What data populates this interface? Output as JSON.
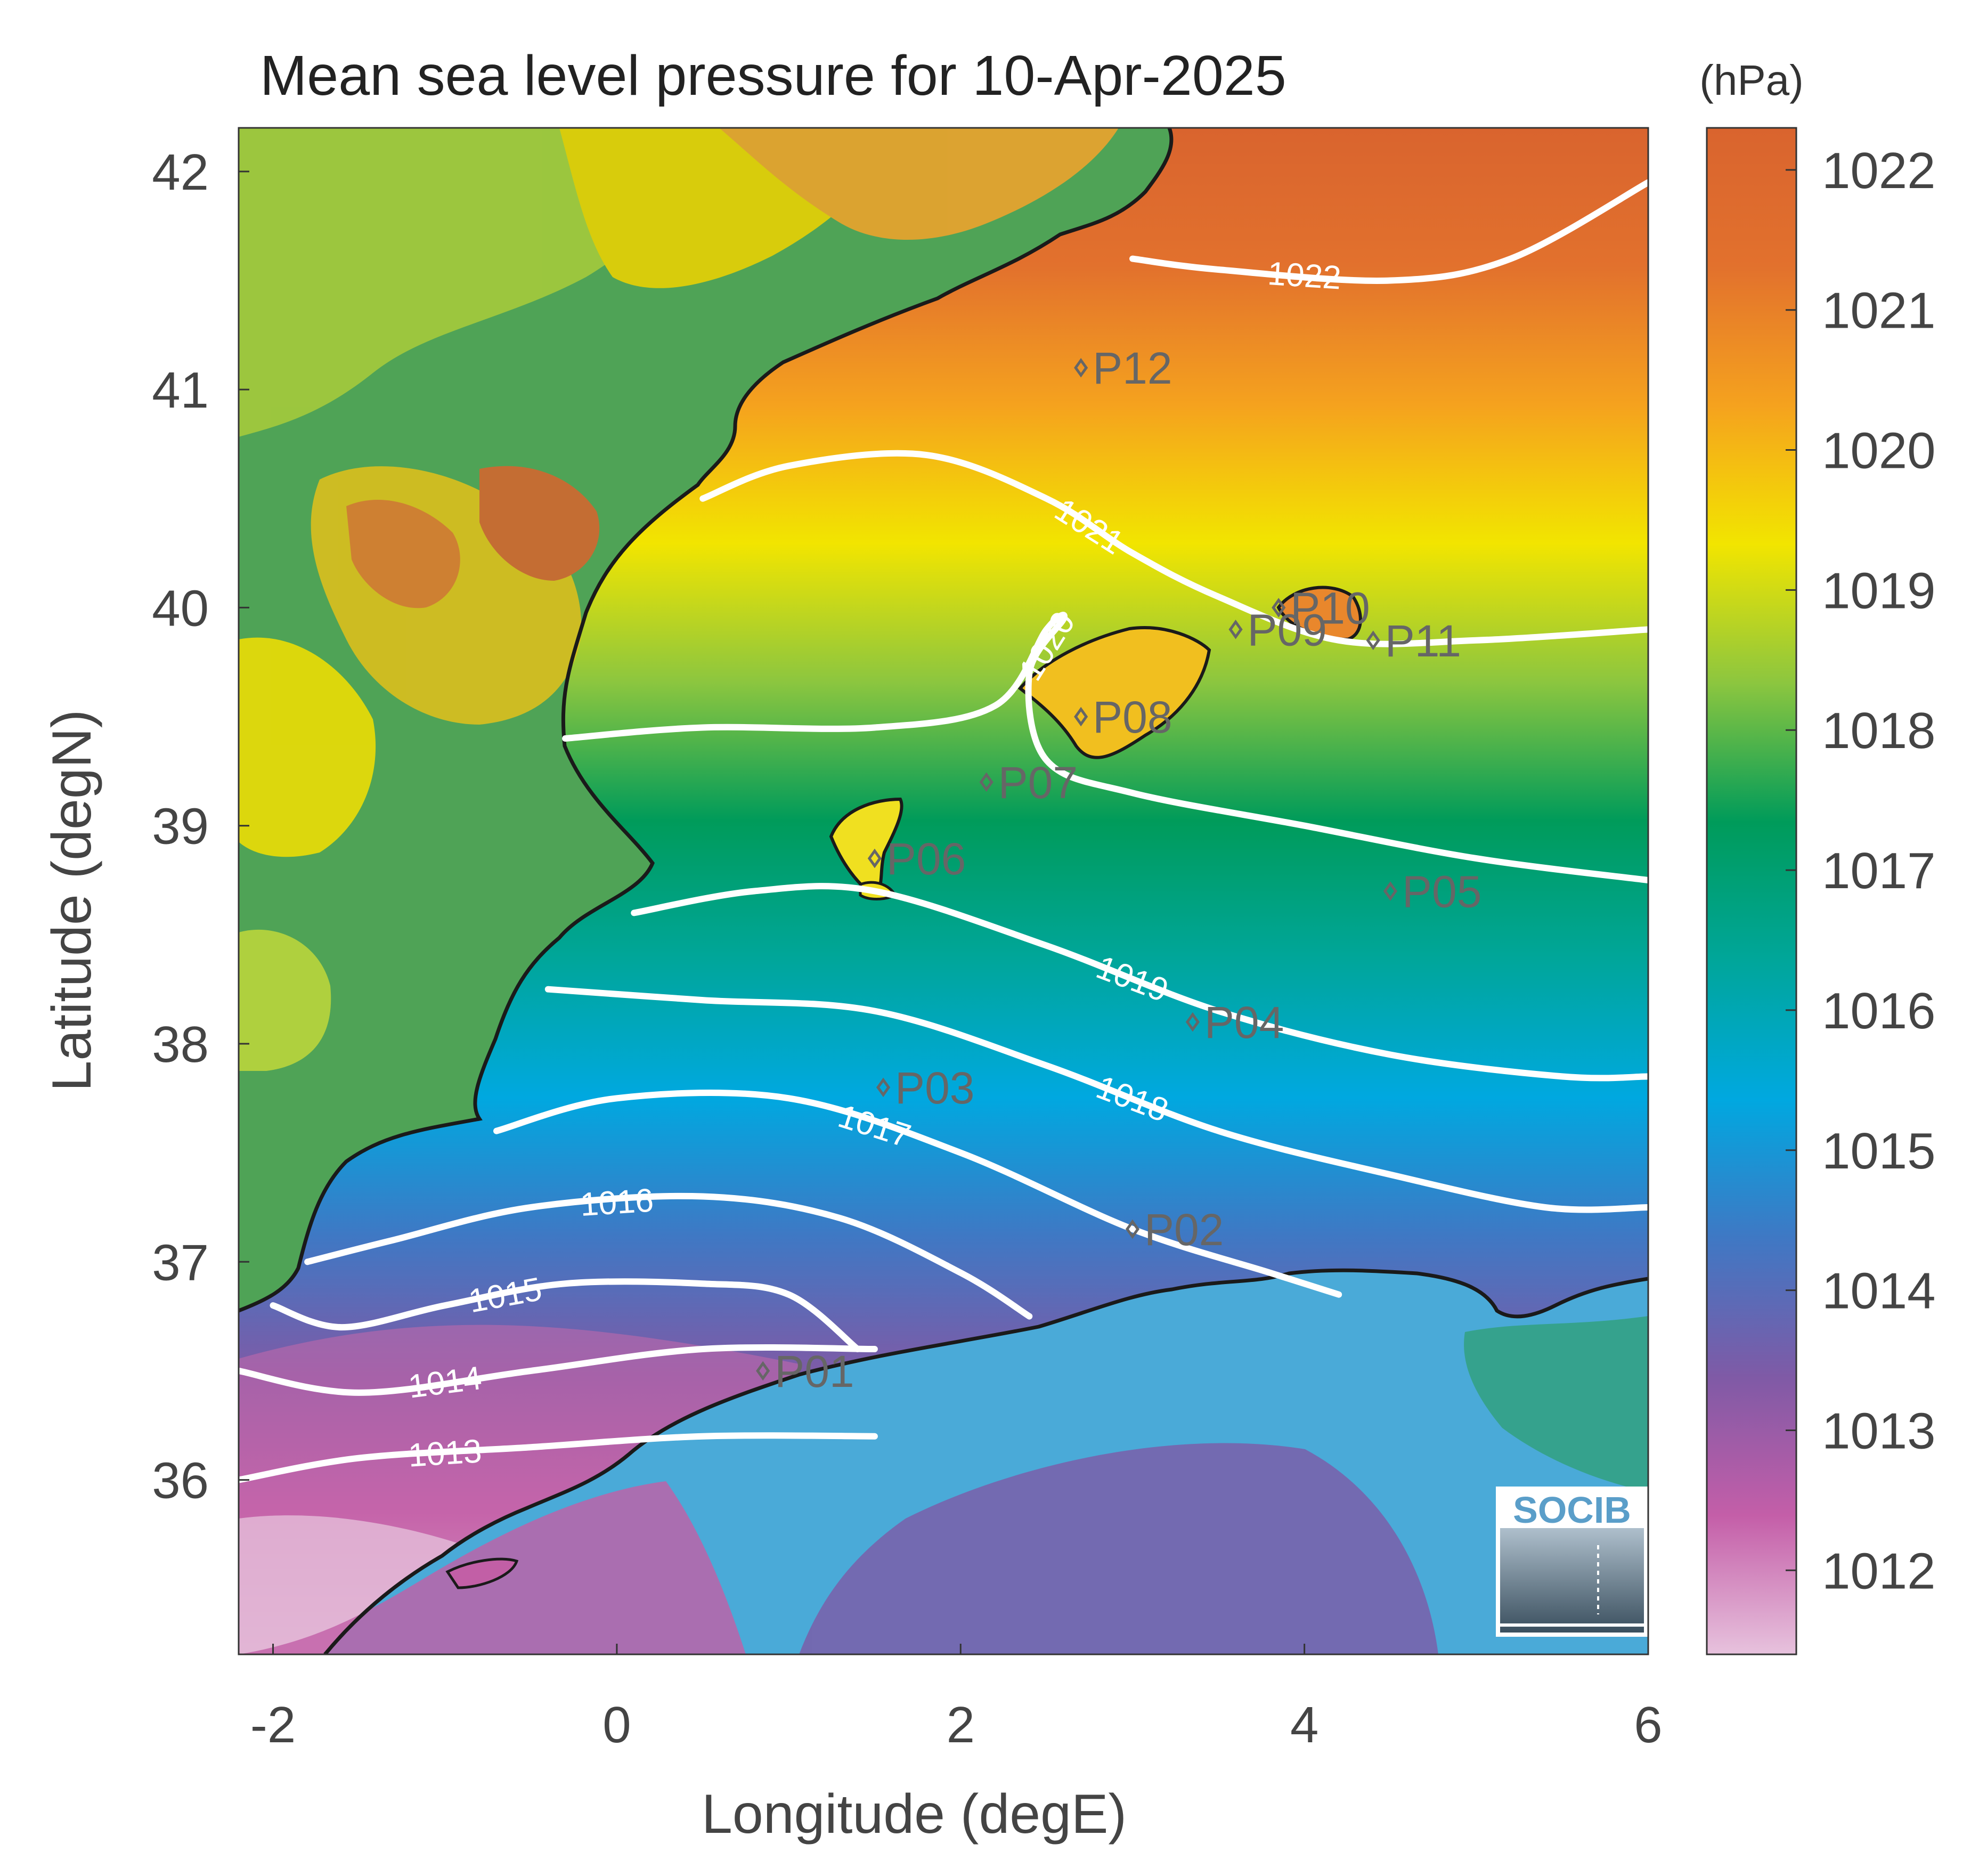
{
  "title": "Mean sea level pressure for 10-Apr-2025",
  "x_axis": {
    "label": "Longitude (degE)",
    "ticks": [
      {
        "value": -2,
        "label": "-2"
      },
      {
        "value": 0,
        "label": "0"
      },
      {
        "value": 2,
        "label": "2"
      },
      {
        "value": 4,
        "label": "4"
      },
      {
        "value": 6,
        "label": "6"
      }
    ]
  },
  "y_axis": {
    "label": "Latitude (degN)",
    "ticks": [
      {
        "value": 36,
        "label": "36"
      },
      {
        "value": 37,
        "label": "37"
      },
      {
        "value": 38,
        "label": "38"
      },
      {
        "value": 39,
        "label": "39"
      },
      {
        "value": 40,
        "label": "40"
      },
      {
        "value": 41,
        "label": "41"
      },
      {
        "value": 42,
        "label": "42"
      }
    ]
  },
  "colorbar": {
    "unit": "(hPa)",
    "ticks": [
      {
        "value": 1012,
        "label": "1012"
      },
      {
        "value": 1013,
        "label": "1013"
      },
      {
        "value": 1014,
        "label": "1014"
      },
      {
        "value": 1015,
        "label": "1015"
      },
      {
        "value": 1016,
        "label": "1016"
      },
      {
        "value": 1017,
        "label": "1017"
      },
      {
        "value": 1018,
        "label": "1018"
      },
      {
        "value": 1019,
        "label": "1019"
      },
      {
        "value": 1020,
        "label": "1020"
      },
      {
        "value": 1021,
        "label": "1021"
      },
      {
        "value": 1022,
        "label": "1022"
      }
    ],
    "colors": [
      "#e7c2dd",
      "#c45ea8",
      "#7f5aa6",
      "#3f78c4",
      "#00a8e0",
      "#00a69a",
      "#009b5a",
      "#8cc63f",
      "#f2e500",
      "#f5a21e",
      "#e2712d",
      "#d9642e"
    ]
  },
  "chart_data": {
    "type": "heatmap",
    "description_fields": "contour map of mean sea level pressure",
    "lon_range": [
      -2.2,
      6.0
    ],
    "lat_range": [
      35.2,
      42.2
    ],
    "value_range": [
      1011.4,
      1022.3
    ],
    "contours": [
      {
        "value": 1013,
        "label": "1013",
        "points": [
          [
            -2.2,
            36.0
          ],
          [
            -1.5,
            36.1
          ],
          [
            -0.5,
            36.15
          ],
          [
            0.5,
            36.2
          ],
          [
            1.5,
            36.2
          ]
        ]
      },
      {
        "value": 1014,
        "label": "1014",
        "points": [
          [
            -2.2,
            36.5
          ],
          [
            -1.5,
            36.4
          ],
          [
            -0.5,
            36.5
          ],
          [
            0.5,
            36.6
          ],
          [
            1.5,
            36.6
          ]
        ]
      },
      {
        "value": 1015,
        "label": "1015",
        "points": [
          [
            -2.0,
            36.8
          ],
          [
            -1.6,
            36.7
          ],
          [
            -1.0,
            36.8
          ],
          [
            -0.3,
            36.9
          ],
          [
            0.5,
            36.9
          ],
          [
            1.0,
            36.85
          ],
          [
            1.4,
            36.6
          ]
        ]
      },
      {
        "value": 1016,
        "label": "1016",
        "points": [
          [
            -1.8,
            37.0
          ],
          [
            -1.3,
            37.1
          ],
          [
            -0.5,
            37.25
          ],
          [
            0.5,
            37.3
          ],
          [
            1.3,
            37.2
          ],
          [
            2.0,
            36.95
          ],
          [
            2.4,
            36.75
          ]
        ]
      },
      {
        "value": 1017,
        "label": "1017",
        "points": [
          [
            -0.7,
            37.6
          ],
          [
            0,
            37.75
          ],
          [
            1.0,
            37.75
          ],
          [
            2.0,
            37.5
          ],
          [
            3.0,
            37.15
          ],
          [
            3.8,
            36.95
          ],
          [
            4.2,
            36.85
          ]
        ]
      },
      {
        "value": 1018,
        "label": "1018",
        "points": [
          [
            -0.4,
            38.25
          ],
          [
            0.5,
            38.2
          ],
          [
            1.5,
            38.15
          ],
          [
            2.5,
            37.9
          ],
          [
            3.5,
            37.6
          ],
          [
            4.5,
            37.4
          ],
          [
            5.4,
            37.25
          ],
          [
            6.0,
            37.25
          ]
        ]
      },
      {
        "value": 1019,
        "label": "1019",
        "points": [
          [
            0.1,
            38.6
          ],
          [
            0.8,
            38.7
          ],
          [
            1.5,
            38.7
          ],
          [
            2.5,
            38.45
          ],
          [
            3.5,
            38.15
          ],
          [
            4.5,
            37.95
          ],
          [
            5.5,
            37.85
          ],
          [
            6.0,
            37.85
          ]
        ]
      },
      {
        "value": 1020,
        "label": "1020",
        "points": [
          [
            -0.3,
            39.4
          ],
          [
            0.5,
            39.45
          ],
          [
            1.5,
            39.45
          ],
          [
            2.2,
            39.55
          ],
          [
            2.5,
            39.9
          ],
          [
            2.6,
            39.95
          ],
          [
            2.4,
            39.7
          ],
          [
            2.5,
            39.3
          ],
          [
            3.0,
            39.15
          ],
          [
            4.0,
            39.0
          ],
          [
            5.0,
            38.85
          ],
          [
            6.0,
            38.75
          ]
        ]
      },
      {
        "value": 1021,
        "label": "1021",
        "points": [
          [
            0.5,
            40.5
          ],
          [
            1.0,
            40.65
          ],
          [
            1.8,
            40.7
          ],
          [
            2.5,
            40.5
          ],
          [
            3.0,
            40.25
          ],
          [
            3.5,
            40.05
          ],
          [
            4.2,
            39.85
          ],
          [
            5.0,
            39.85
          ],
          [
            6.0,
            39.9
          ]
        ]
      },
      {
        "value": 1022,
        "label": "1022",
        "points": [
          [
            3.0,
            41.6
          ],
          [
            3.5,
            41.55
          ],
          [
            4.5,
            41.5
          ],
          [
            5.2,
            41.6
          ],
          [
            6.0,
            41.95
          ]
        ]
      }
    ],
    "stations": [
      {
        "name": "P01",
        "lon": 0.85,
        "lat": 36.5
      },
      {
        "name": "P02",
        "lon": 3.0,
        "lat": 37.15
      },
      {
        "name": "P03",
        "lon": 1.55,
        "lat": 37.8
      },
      {
        "name": "P04",
        "lon": 3.35,
        "lat": 38.1
      },
      {
        "name": "P05",
        "lon": 4.5,
        "lat": 38.7
      },
      {
        "name": "P06",
        "lon": 1.5,
        "lat": 38.85
      },
      {
        "name": "P07",
        "lon": 2.15,
        "lat": 39.2
      },
      {
        "name": "P08",
        "lon": 2.7,
        "lat": 39.5
      },
      {
        "name": "P09",
        "lon": 3.6,
        "lat": 39.9
      },
      {
        "name": "P10",
        "lon": 3.85,
        "lat": 40.0
      },
      {
        "name": "P11",
        "lon": 4.4,
        "lat": 39.85
      },
      {
        "name": "P12",
        "lon": 2.7,
        "lat": 41.1
      }
    ]
  },
  "logo": {
    "text": "SOCIB"
  }
}
